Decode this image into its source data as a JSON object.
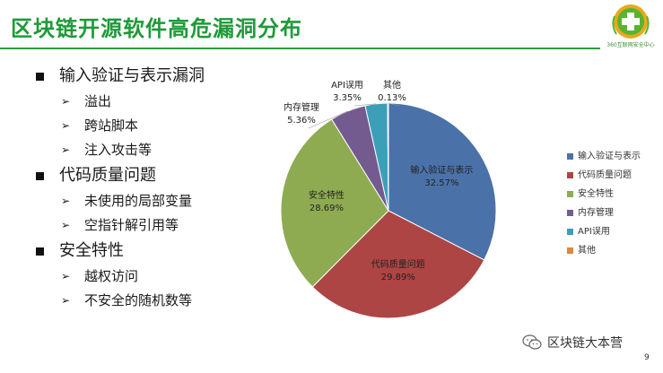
{
  "slide": {
    "title": "区块链开源软件高危漏洞分布",
    "logo_text": "360互联网安全中心",
    "page_number": "9",
    "footer_brand": "区块链大本营"
  },
  "bullets": [
    {
      "label": "输入验证与表示漏洞",
      "children": [
        "溢出",
        "跨站脚本",
        "注入攻击等"
      ]
    },
    {
      "label": "代码质量问题",
      "children": [
        "未使用的局部变量",
        "空指针解引用等"
      ]
    },
    {
      "label": "安全特性",
      "children": [
        "越权访问",
        "不安全的随机数等"
      ]
    }
  ],
  "icons": {
    "bullet": "square-bullet-icon",
    "sub_bullet": "arrow-bullet-icon",
    "footer": "wechat-icon",
    "logo": "cross-logo-icon"
  },
  "colors": {
    "title": "#1f9a38",
    "rule": "#2e9a43"
  },
  "chart_data": {
    "type": "pie",
    "title": "",
    "slices": [
      {
        "label": "输入验证与表示",
        "value": 32.57,
        "display": "32.57%",
        "color": "#4a72a8"
      },
      {
        "label": "代码质量问题",
        "value": 29.89,
        "display": "29.89%",
        "color": "#ad4544"
      },
      {
        "label": "安全特性",
        "value": 28.69,
        "display": "28.69%",
        "color": "#8eab52"
      },
      {
        "label": "内存管理",
        "value": 5.36,
        "display": "5.36%",
        "color": "#735b90"
      },
      {
        "label": "API误用",
        "value": 3.35,
        "display": "3.35%",
        "color": "#3c9fb8"
      },
      {
        "label": "其他",
        "value": 0.13,
        "display": "0.13%",
        "color": "#db8a3a"
      }
    ],
    "legend_position": "right"
  }
}
